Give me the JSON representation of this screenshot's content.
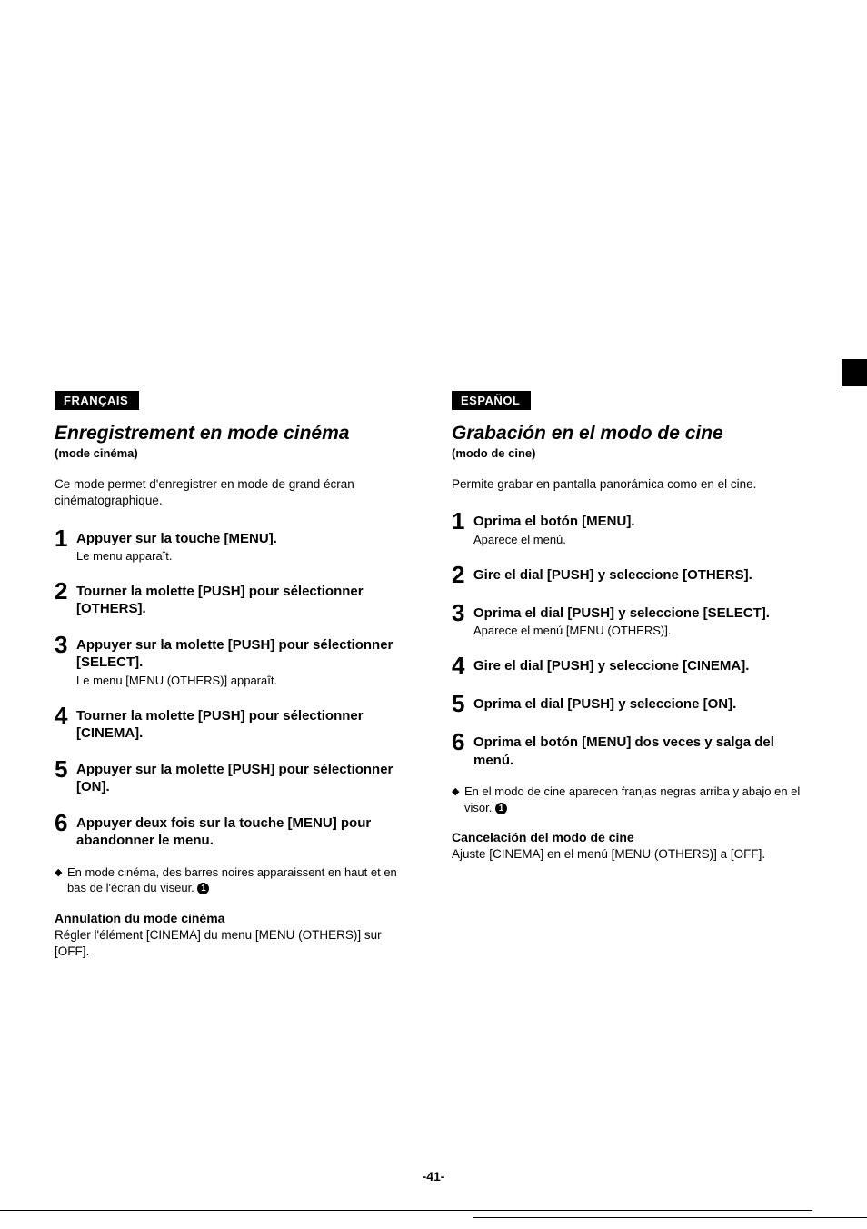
{
  "page_number": "-41-",
  "colors": {
    "bg": "#ffffff",
    "text": "#000000",
    "tag_bg": "#000000",
    "tag_fg": "#ffffff"
  },
  "left": {
    "lang": "FRANÇAIS",
    "title": "Enregistrement en mode cinéma",
    "subtitle": "(mode cinéma)",
    "intro": "Ce mode permet d'enregistrer en mode de grand écran cinématographique.",
    "steps": [
      {
        "num": "1",
        "title": "Appuyer sur la touche [MENU].",
        "note": "Le menu apparaît."
      },
      {
        "num": "2",
        "title": "Tourner la molette [PUSH] pour sélectionner [OTHERS].",
        "note": ""
      },
      {
        "num": "3",
        "title": "Appuyer sur la molette [PUSH] pour sélectionner [SELECT].",
        "note": "Le menu [MENU (OTHERS)] apparaît."
      },
      {
        "num": "4",
        "title": "Tourner la molette [PUSH] pour sélectionner [CINEMA].",
        "note": ""
      },
      {
        "num": "5",
        "title": "Appuyer sur la molette [PUSH] pour sélectionner [ON].",
        "note": ""
      },
      {
        "num": "6",
        "title": "Appuyer deux fois sur la touche [MENU] pour abandonner le menu.",
        "note": ""
      }
    ],
    "bullet": "En mode cinéma, des barres noires apparaissent en haut et en bas  de l'écran du viseur.",
    "bullet_ref": "1",
    "cancel_title": "Annulation du mode cinéma",
    "cancel_body": "Régler l'élément [CINEMA] du menu [MENU (OTHERS)] sur [OFF]."
  },
  "right": {
    "lang": "ESPAÑOL",
    "title": "Grabación en el modo de cine",
    "subtitle": "(modo de cine)",
    "intro": "Permite grabar en pantalla panorámica como en el cine.",
    "steps": [
      {
        "num": "1",
        "title": "Oprima el botón [MENU].",
        "note": "Aparece el menú."
      },
      {
        "num": "2",
        "title": "Gire el dial [PUSH] y seleccione [OTHERS].",
        "note": ""
      },
      {
        "num": "3",
        "title": "Oprima el dial [PUSH] y seleccione [SELECT].",
        "note": "Aparece el menú [MENU (OTHERS)]."
      },
      {
        "num": "4",
        "title": "Gire el dial [PUSH] y seleccione [CINEMA].",
        "note": ""
      },
      {
        "num": "5",
        "title": "Oprima el dial [PUSH] y seleccione [ON].",
        "note": ""
      },
      {
        "num": "6",
        "title": "Oprima el botón [MENU] dos veces y salga del menú.",
        "note": ""
      }
    ],
    "bullet": "En el modo de cine aparecen franjas negras arriba y abajo  en el visor.",
    "bullet_ref": "1",
    "cancel_title": "Cancelación del modo de cine",
    "cancel_body": "Ajuste [CINEMA] en el menú [MENU (OTHERS)] a [OFF]."
  }
}
